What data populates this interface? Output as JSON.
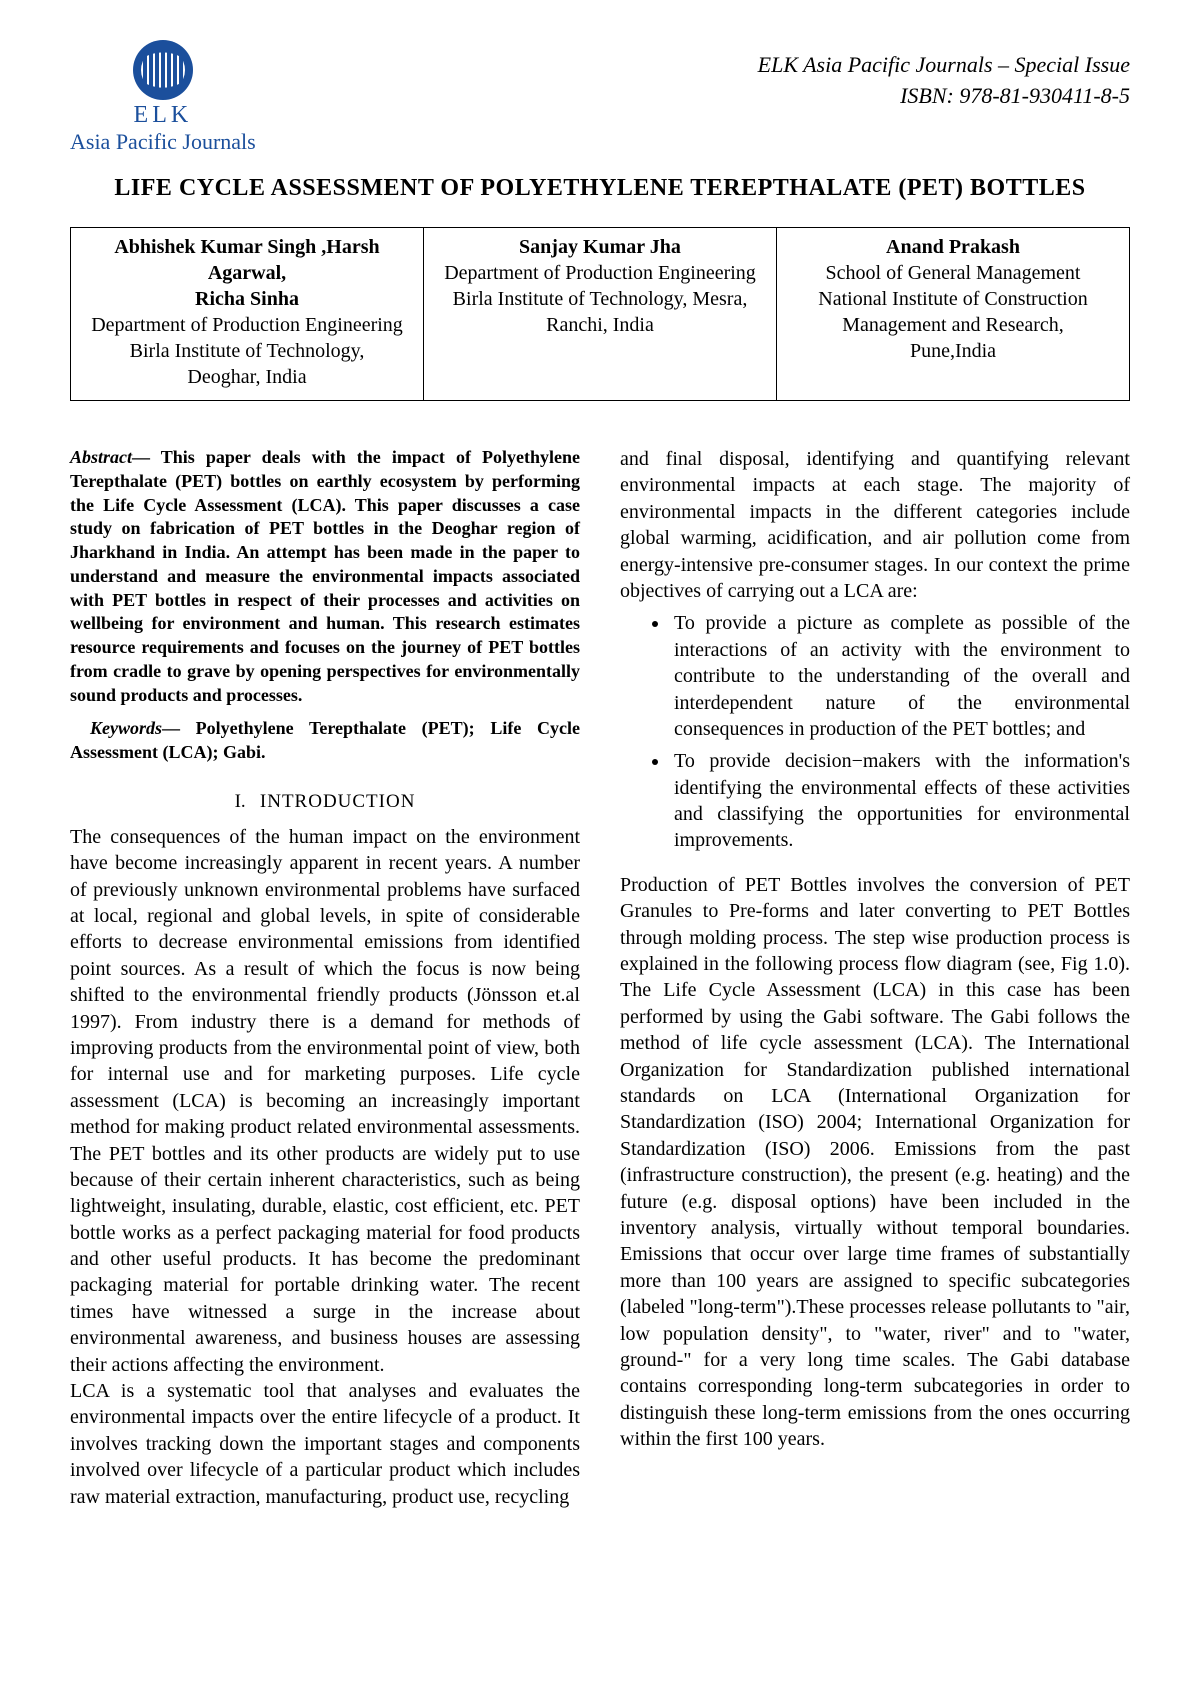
{
  "header": {
    "logo_elk": "ELK",
    "logo_sub": "Asia Pacific Journals",
    "journal_line1": "ELK Asia Pacific Journals – Special Issue",
    "journal_line2": "ISBN: 978-81-930411-8-5"
  },
  "title": "LIFE CYCLE ASSESSMENT OF POLYETHYLENE TEREPTHALATE (PET) BOTTLES",
  "authors": [
    {
      "names": "Abhishek Kumar Singh ,Harsh Agarwal,",
      "names2": "Richa Sinha",
      "dept": "Department of Production Engineering",
      "inst": "Birla Institute of Technology,",
      "loc": "Deoghar, India"
    },
    {
      "names": "Sanjay Kumar Jha",
      "dept": "Department of Production Engineering",
      "inst": "Birla Institute of Technology, Mesra,",
      "loc": "Ranchi, India"
    },
    {
      "names": "Anand Prakash",
      "dept": "School of General Management",
      "inst": "National Institute of Construction",
      "inst2": "Management and Research,",
      "loc": "Pune,India"
    }
  ],
  "abstract_label": "Abstract",
  "abstract_text": "— This paper deals with the impact of Polyethylene Terepthalate (PET) bottles on earthly ecosystem by performing the Life Cycle Assessment (LCA). This paper discusses a case study on fabrication of PET bottles in the Deoghar region of Jharkhand in India. An attempt has been made in the paper to understand and measure the environmental impacts associated with PET bottles in respect of their processes and activities on wellbeing for environment and human. This research estimates resource requirements and focuses on the journey of PET bottles from cradle to grave by opening perspectives for environmentally sound products and processes.",
  "keywords_label": "Keywords",
  "keywords_text": "— Polyethylene Terepthalate (PET); Life Cycle Assessment (LCA); Gabi.",
  "section1_num": "I.",
  "section1_title": "INTRODUCTION",
  "col1_p1": "The consequences of the human impact on the environment have become increasingly apparent in recent years. A number of previously unknown environmental problems have surfaced at local, regional and global levels, in spite of considerable efforts to decrease environmental emissions from identified point sources. As a result of which the focus is now being shifted to the environmental friendly products (Jönsson et.al 1997). From industry there is a demand for methods of improving products from the environmental point of view, both for internal use and for marketing purposes. Life cycle assessment (LCA) is becoming an increasingly important method for making product related environmental assessments. The PET bottles and its other products are widely put to use because of their certain inherent characteristics, such as being lightweight, insulating, durable, elastic, cost efficient, etc. PET bottle works as a perfect packaging material for food products and other useful products. It has become the predominant packaging material for portable drinking water. The recent times have witnessed a surge in the increase about environmental awareness, and business houses are assessing their actions affecting the environment.",
  "col1_p2": "LCA is a systematic tool that analyses and evaluates the environmental impacts over the entire lifecycle of a product. It involves tracking down the important stages and components involved over lifecycle of a particular product which includes raw material extraction, manufacturing, product use, recycling",
  "col2_p1": "and final disposal, identifying and quantifying relevant environmental impacts at each stage. The majority of environmental impacts in the different categories include global warming, acidification, and air pollution come from energy-intensive pre-consumer stages. In our context the prime objectives of carrying out a LCA are:",
  "bullets": [
    "To provide a picture as complete as possible of the interactions of an activity with the environment to contribute to the understanding of the overall and interdependent nature of the environmental consequences in production of the PET bottles; and",
    "To provide decision−makers with the information's identifying the environmental effects of these activities and classifying the opportunities for environmental improvements."
  ],
  "col2_p2": "Production of PET Bottles involves the conversion of PET Granules to Pre-forms and later converting to PET Bottles through molding process. The step wise production process is explained in the following process flow diagram (see, Fig 1.0). The Life Cycle Assessment (LCA) in this case has been performed by using the Gabi software. The Gabi follows the method of life cycle assessment (LCA). The International Organization for Standardization published international standards on LCA (International Organization for Standardization (ISO) 2004; International Organization for Standardization (ISO) 2006. Emissions from the past (infrastructure construction), the present (e.g. heating) and the future (e.g. disposal options) have been included in the inventory analysis, virtually without temporal boundaries. Emissions that occur over large time frames of substantially more than 100 years are assigned to specific subcategories (labeled \"long-term\").These processes release pollutants to \"air, low population density\", to \"water, river\" and to \"water, ground-\" for a very long time scales. The Gabi database contains corresponding long-term subcategories in order to distinguish these long-term emissions from the ones occurring within the first 100 years."
}
